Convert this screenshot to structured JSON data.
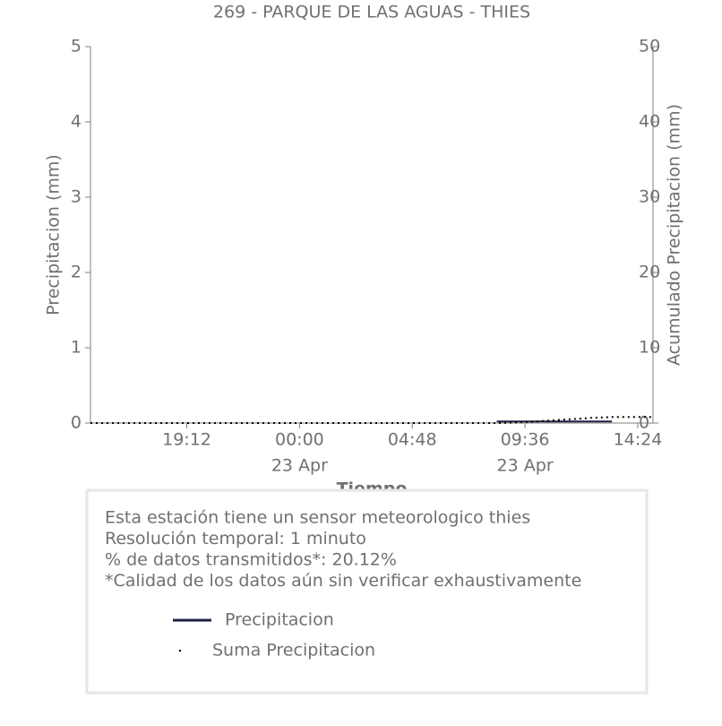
{
  "chart_data": {
    "type": "line",
    "title": "269 - PARQUE DE LAS AGUAS - THIES",
    "x_label": "Tiempo",
    "y_label": "Precipitacion (mm)",
    "y2_label": "Acumulado Precipitacion (mm)",
    "x": [
      -8.9,
      -6,
      -3,
      0,
      3,
      6,
      8.4,
      9.5,
      10.5,
      11.5,
      12.5,
      13.3,
      14,
      15
    ],
    "series": [
      {
        "name": "Precipitacion",
        "color": "#1f2041",
        "style": "solid",
        "values": [
          null,
          null,
          null,
          null,
          null,
          null,
          0.02,
          0.02,
          0.02,
          0.02,
          0.02,
          0.02,
          null,
          null
        ]
      },
      {
        "name": "Suma Precipitacion",
        "color": "#000000",
        "style": "dotted",
        "axis": "y2",
        "values": [
          0,
          0,
          0,
          0,
          0,
          0,
          0,
          0.1,
          0.3,
          0.5,
          0.7,
          0.8,
          0.8,
          0.8
        ]
      }
    ],
    "xlim": [
      -8.9,
      15.05
    ],
    "xticks": [
      {
        "value": -4.8,
        "label": "19:12"
      },
      {
        "value": 0,
        "label": "00:00",
        "sublabel": "23 Apr"
      },
      {
        "value": 4.8,
        "label": "04:48"
      },
      {
        "value": 9.6,
        "label": "09:36",
        "sublabel": "23 Apr"
      },
      {
        "value": 14.4,
        "label": "14:24"
      }
    ],
    "ylim": [
      0,
      5
    ],
    "yticks": [
      0,
      1,
      2,
      3,
      4,
      5
    ],
    "y2lim": [
      0,
      50
    ],
    "y2ticks": [
      0,
      10,
      20,
      30,
      40,
      50
    ],
    "annotations": [
      "Esta estación tiene un sensor meteorologico thies",
      "Resolución temporal: 1 minuto",
      "% de datos transmitidos*: 20.12%",
      "*Calidad de los datos aún sin verificar exhaustivamente"
    ]
  }
}
